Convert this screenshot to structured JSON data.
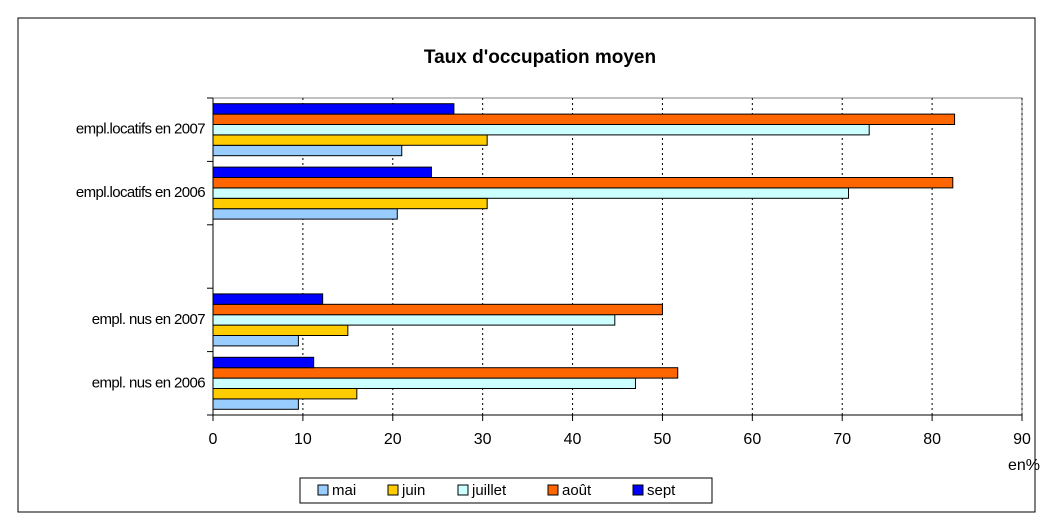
{
  "chart_data": {
    "type": "barh",
    "title": "Taux d'occupation moyen",
    "x_label": "en%",
    "categories": [
      "empl.locatifs en 2007",
      "empl.locatifs en 2006",
      null,
      "empl. nus en 2007",
      "empl. nus en 2006"
    ],
    "series": [
      {
        "name": "mai",
        "color": "#99ccff",
        "values": [
          21,
          20.5,
          null,
          9.5,
          9.5
        ]
      },
      {
        "name": "juin",
        "color": "#ffcc00",
        "values": [
          30.5,
          30.5,
          null,
          15,
          16
        ]
      },
      {
        "name": "juillet",
        "color": "#ccffff",
        "values": [
          73,
          70.7,
          null,
          44.7,
          47
        ]
      },
      {
        "name": "août",
        "color": "#ff6600",
        "values": [
          82.5,
          82.3,
          null,
          50,
          51.7
        ]
      },
      {
        "name": "sept",
        "color": "#0000ff",
        "values": [
          26.8,
          24.3,
          null,
          12.2,
          11.2
        ]
      }
    ],
    "xlim": [
      0,
      90
    ],
    "xticks": [
      0,
      10,
      20,
      30,
      40,
      50,
      60,
      70,
      80,
      90
    ],
    "grid": true,
    "legend": "bottom"
  }
}
